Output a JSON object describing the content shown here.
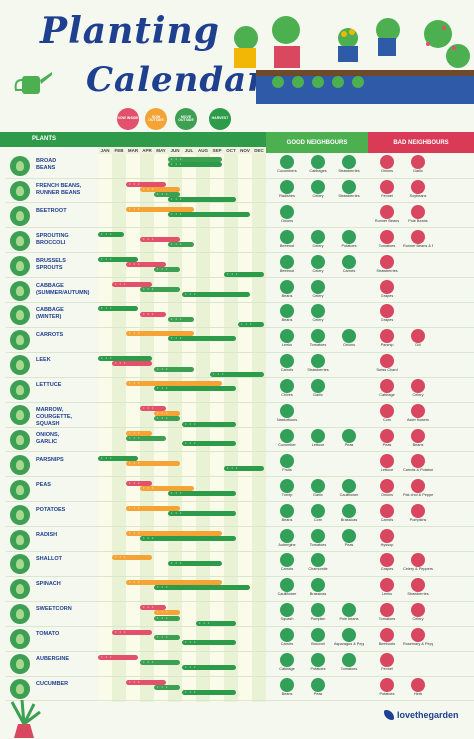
{
  "title": {
    "line1": "Planting",
    "line2": "Calendar"
  },
  "headers": {
    "plants": "PLANTS",
    "good": "GOOD NEIGHBOURS",
    "bad": "BAD NEIGHBOURS"
  },
  "legend": [
    {
      "key": "sow_inside",
      "label": "SOW INSIDE",
      "color": "#e2506c"
    },
    {
      "key": "sow_outside",
      "label": "SOW OUTSIDE",
      "color": "#f4a334"
    },
    {
      "key": "move_outside",
      "label": "MOVE OUTSIDE",
      "color": "#3c9f52"
    },
    {
      "key": "harvest",
      "label": "HARVEST",
      "color": "#2c9b4a"
    }
  ],
  "months": [
    "JAN",
    "FEB",
    "MAR",
    "APR",
    "MAY",
    "JUN",
    "JUL",
    "AUG",
    "SEP",
    "OCT",
    "NOV",
    "DEC"
  ],
  "plants": [
    {
      "name": "BROAD\nBEANS",
      "bars": [
        {
          "t": "move_outside",
          "s": 6,
          "e": 9
        },
        {
          "t": "harvest",
          "s": 6,
          "e": 9
        }
      ],
      "good": [
        "Cucumbers",
        "Cabbages",
        "Strawberries"
      ],
      "bad": [
        "Onions",
        "Garlic"
      ]
    },
    {
      "name": "FRENCH BEANS,\nRUNNER BEANS",
      "bars": [
        {
          "t": "sow_inside",
          "s": 3,
          "e": 5
        },
        {
          "t": "sow_outside",
          "s": 4,
          "e": 6
        },
        {
          "t": "move_outside",
          "s": 5,
          "e": 6
        },
        {
          "t": "harvest",
          "s": 6,
          "e": 10
        }
      ],
      "good": [
        "Radishes",
        "Celery",
        "Strawberries"
      ],
      "bad": [
        "Fennel",
        "Soybeans"
      ]
    },
    {
      "name": "BEETROOT",
      "bars": [
        {
          "t": "sow_outside",
          "s": 3,
          "e": 7
        },
        {
          "t": "harvest",
          "s": 6,
          "e": 11
        }
      ],
      "good": [
        "Onions"
      ],
      "bad": [
        "Runner Beans",
        "Pole Beans"
      ]
    },
    {
      "name": "SPROUTING\nBROCCOLI",
      "bars": [
        {
          "t": "harvest",
          "s": 1,
          "e": 2
        },
        {
          "t": "sow_inside",
          "s": 4,
          "e": 6
        },
        {
          "t": "move_outside",
          "s": 6,
          "e": 7
        }
      ],
      "good": [
        "Beetroot",
        "Celery",
        "Potatoes"
      ],
      "bad": [
        "Tomatoes",
        "Runner Beans & Peppers"
      ]
    },
    {
      "name": "BRUSSELS\nSPROUTS",
      "bars": [
        {
          "t": "harvest",
          "s": 1,
          "e": 3
        },
        {
          "t": "sow_inside",
          "s": 3,
          "e": 5
        },
        {
          "t": "move_outside",
          "s": 5,
          "e": 6
        },
        {
          "t": "harvest",
          "s": 10,
          "e": 12
        }
      ],
      "good": [
        "Beetroot",
        "Celery",
        "Carrots"
      ],
      "bad": [
        "Strawberries"
      ]
    },
    {
      "name": "CABBAGE\n(SUMMER/AUTUMN)",
      "bars": [
        {
          "t": "sow_inside",
          "s": 2,
          "e": 4
        },
        {
          "t": "move_outside",
          "s": 4,
          "e": 6
        },
        {
          "t": "harvest",
          "s": 7,
          "e": 11
        }
      ],
      "good": [
        "Beans",
        "Celery"
      ],
      "bad": [
        "Grapes"
      ]
    },
    {
      "name": "CABBAGE\n(WINTER)",
      "bars": [
        {
          "t": "harvest",
          "s": 1,
          "e": 3
        },
        {
          "t": "sow_inside",
          "s": 4,
          "e": 5
        },
        {
          "t": "move_outside",
          "s": 6,
          "e": 7
        },
        {
          "t": "harvest",
          "s": 11,
          "e": 12
        }
      ],
      "good": [
        "Beans",
        "Celery"
      ],
      "bad": [
        "Grapes"
      ]
    },
    {
      "name": "CARROTS",
      "bars": [
        {
          "t": "sow_outside",
          "s": 3,
          "e": 7
        },
        {
          "t": "harvest",
          "s": 6,
          "e": 10
        }
      ],
      "good": [
        "Leeks",
        "Tomatoes",
        "Onions"
      ],
      "bad": [
        "Parsnip",
        "Dill"
      ]
    },
    {
      "name": "LEEK",
      "bars": [
        {
          "t": "harvest",
          "s": 1,
          "e": 4
        },
        {
          "t": "sow_inside",
          "s": 2,
          "e": 4
        },
        {
          "t": "move_outside",
          "s": 5,
          "e": 7
        },
        {
          "t": "harvest",
          "s": 9,
          "e": 12
        }
      ],
      "good": [
        "Carrots",
        "Strawberries"
      ],
      "bad": [
        "Swiss Chard"
      ]
    },
    {
      "name": "LETTUCE",
      "bars": [
        {
          "t": "sow_outside",
          "s": 3,
          "e": 9
        },
        {
          "t": "harvest",
          "s": 5,
          "e": 10
        }
      ],
      "good": [
        "Chives",
        "Garlic"
      ],
      "bad": [
        "Cabbage",
        "Celery"
      ]
    },
    {
      "name": "MARROW,\nCOURGETTE,\nSQUASH",
      "bars": [
        {
          "t": "sow_inside",
          "s": 4,
          "e": 5
        },
        {
          "t": "sow_outside",
          "s": 5,
          "e": 6
        },
        {
          "t": "move_outside",
          "s": 5,
          "e": 6
        },
        {
          "t": "harvest",
          "s": 7,
          "e": 10
        }
      ],
      "good": [
        "Nasturtiums"
      ],
      "bad": [
        "Corn",
        "Aster flowers"
      ]
    },
    {
      "name": "ONIONS,\nGARLIC",
      "bars": [
        {
          "t": "sow_outside",
          "s": 3,
          "e": 4
        },
        {
          "t": "move_outside",
          "s": 3,
          "e": 5
        },
        {
          "t": "harvest",
          "s": 7,
          "e": 10
        }
      ],
      "good": [
        "Cucumber",
        "Lettuce",
        "Peas"
      ],
      "bad": [
        "Peas",
        "Beans"
      ]
    },
    {
      "name": "PARSNIPS",
      "bars": [
        {
          "t": "harvest",
          "s": 1,
          "e": 3
        },
        {
          "t": "sow_outside",
          "s": 3,
          "e": 6
        },
        {
          "t": "harvest",
          "s": 10,
          "e": 12
        }
      ],
      "good": [
        "Fruits"
      ],
      "bad": [
        "Lettuce",
        "Carrots & Potatoes"
      ]
    },
    {
      "name": "PEAS",
      "bars": [
        {
          "t": "sow_inside",
          "s": 3,
          "e": 4
        },
        {
          "t": "sow_outside",
          "s": 4,
          "e": 7
        },
        {
          "t": "harvest",
          "s": 6,
          "e": 10
        }
      ],
      "good": [
        "Turnip",
        "Garlic",
        "Cauliflower"
      ],
      "bad": [
        "Onions",
        "Pak choi & Peppers"
      ]
    },
    {
      "name": "POTATOES",
      "bars": [
        {
          "t": "sow_outside",
          "s": 3,
          "e": 6
        },
        {
          "t": "harvest",
          "s": 6,
          "e": 10
        }
      ],
      "good": [
        "Beans",
        "Corn",
        "Brassicas"
      ],
      "bad": [
        "Carrots",
        "Pumpkins"
      ]
    },
    {
      "name": "RADISH",
      "bars": [
        {
          "t": "sow_outside",
          "s": 3,
          "e": 9
        },
        {
          "t": "harvest",
          "s": 4,
          "e": 10
        }
      ],
      "good": [
        "Aubergine",
        "Tomatoes",
        "Peas"
      ],
      "bad": [
        "Hyssop"
      ]
    },
    {
      "name": "SHALLOT",
      "bars": [
        {
          "t": "sow_outside",
          "s": 2,
          "e": 4
        },
        {
          "t": "harvest",
          "s": 6,
          "e": 9
        }
      ],
      "good": [
        "Carrots",
        "Chamomile"
      ],
      "bad": [
        "Grapes",
        "Celery & Peppers"
      ]
    },
    {
      "name": "SPINACH",
      "bars": [
        {
          "t": "sow_outside",
          "s": 3,
          "e": 9
        },
        {
          "t": "harvest",
          "s": 5,
          "e": 11
        }
      ],
      "good": [
        "Cauliflower",
        "Brassicas"
      ],
      "bad": [
        "Leeks",
        "Strawberries"
      ]
    },
    {
      "name": "SWEETCORN",
      "bars": [
        {
          "t": "sow_inside",
          "s": 4,
          "e": 5
        },
        {
          "t": "sow_outside",
          "s": 5,
          "e": 6
        },
        {
          "t": "move_outside",
          "s": 5,
          "e": 6
        },
        {
          "t": "harvest",
          "s": 8,
          "e": 10
        }
      ],
      "good": [
        "Squash",
        "Pumpkin",
        "Pole beans"
      ],
      "bad": [
        "Tomatoes",
        "Celery"
      ]
    },
    {
      "name": "TOMATO",
      "bars": [
        {
          "t": "sow_inside",
          "s": 2,
          "e": 4
        },
        {
          "t": "move_outside",
          "s": 5,
          "e": 6
        },
        {
          "t": "harvest",
          "s": 7,
          "e": 10
        }
      ],
      "good": [
        "Carrots",
        "Broccoli",
        "Asparagus & Peppers"
      ],
      "bad": [
        "Beetroots",
        "Rosemary & Peppers"
      ]
    },
    {
      "name": "AUBERGINE",
      "bars": [
        {
          "t": "sow_inside",
          "s": 1,
          "e": 3
        },
        {
          "t": "move_outside",
          "s": 4,
          "e": 6
        },
        {
          "t": "harvest",
          "s": 7,
          "e": 10
        }
      ],
      "good": [
        "Cabbage",
        "Potatoes",
        "Tomatoes"
      ],
      "bad": [
        "Fennel"
      ]
    },
    {
      "name": "CUCUMBER",
      "bars": [
        {
          "t": "sow_inside",
          "s": 3,
          "e": 5
        },
        {
          "t": "move_outside",
          "s": 5,
          "e": 6
        },
        {
          "t": "harvest",
          "s": 7,
          "e": 10
        }
      ],
      "good": [
        "Beans",
        "Peas"
      ],
      "bad": [
        "Potatoes",
        "Herb"
      ]
    }
  ],
  "brand": "lovethegarden"
}
